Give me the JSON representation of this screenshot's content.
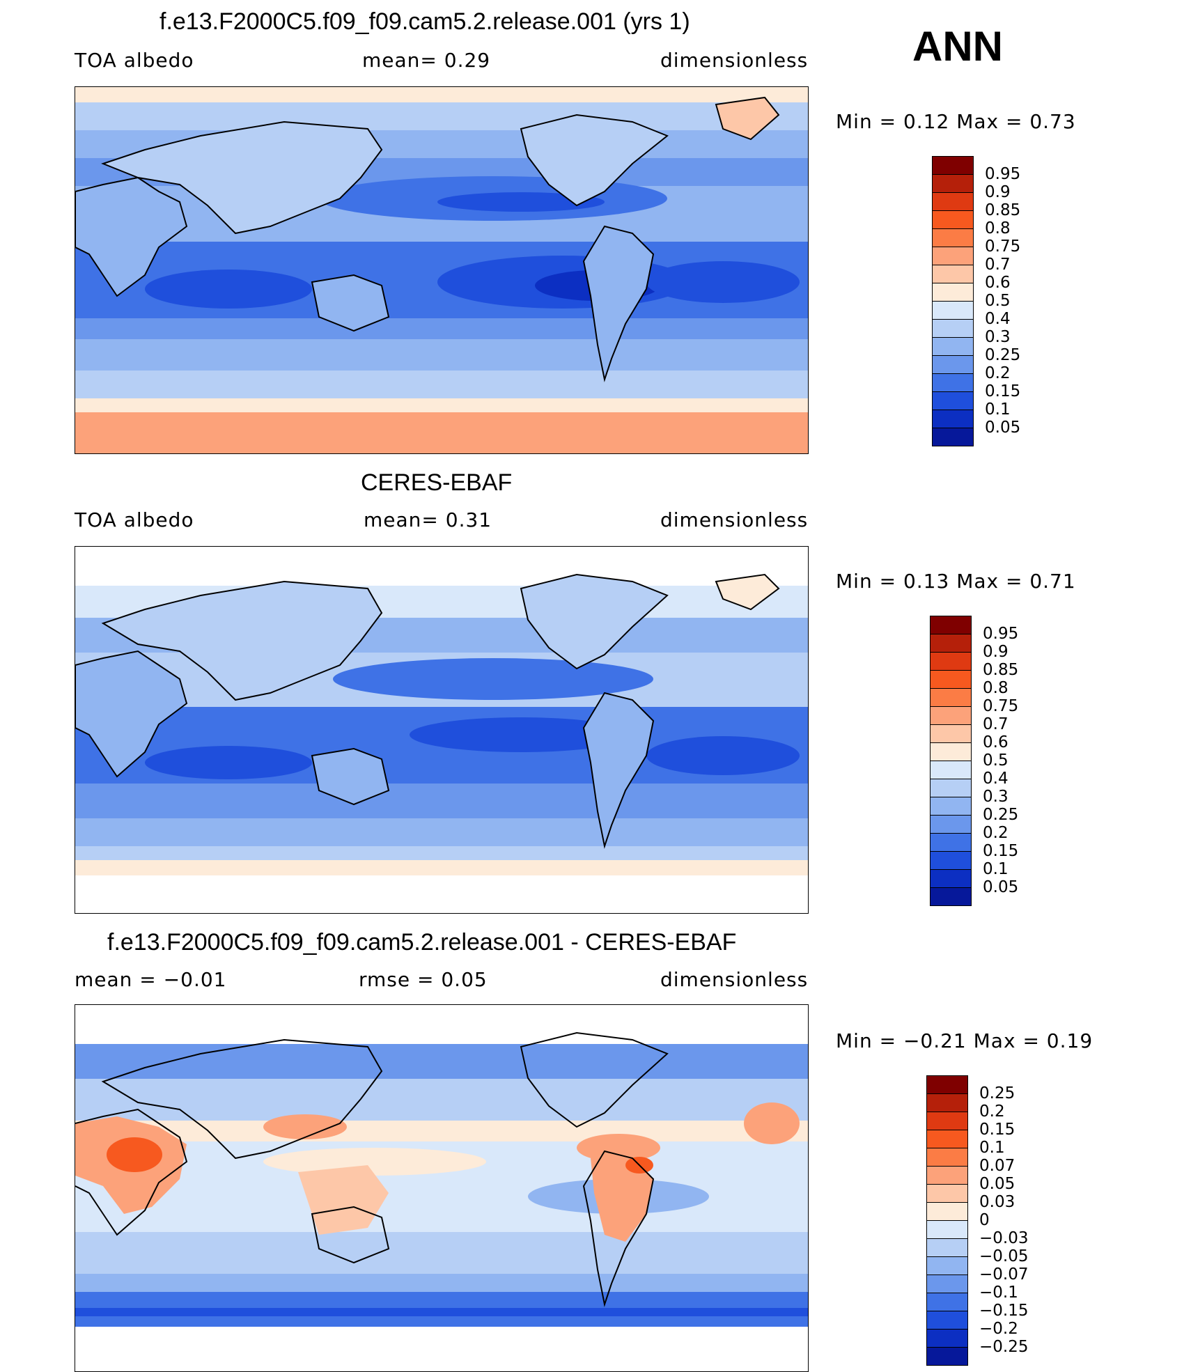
{
  "season": "ANN",
  "panels": [
    {
      "title": "f.e13.F2000C5.f09_f09.cam5.2.release.001 (yrs 1)",
      "left_label": "TOA  albedo",
      "center_label": "mean=     0.29",
      "right_label": "dimensionless",
      "minmax": "Min  =      0.12  Max  =      0.73",
      "levels": [
        "0.95",
        "0.9",
        "0.85",
        "0.8",
        "0.75",
        "0.7",
        "0.6",
        "0.5",
        "0.4",
        "0.3",
        "0.25",
        "0.2",
        "0.15",
        "0.1",
        "0.05"
      ]
    },
    {
      "title": "CERES-EBAF",
      "left_label": "TOA  albedo",
      "center_label": "mean=     0.31",
      "right_label": "dimensionless",
      "minmax": "Min  =      0.13  Max  =      0.71",
      "levels": [
        "0.95",
        "0.9",
        "0.85",
        "0.8",
        "0.75",
        "0.7",
        "0.6",
        "0.5",
        "0.4",
        "0.3",
        "0.25",
        "0.2",
        "0.15",
        "0.1",
        "0.05"
      ]
    },
    {
      "title": "f.e13.F2000C5.f09_f09.cam5.2.release.001 - CERES-EBAF",
      "left_label": "mean  =    −0.01",
      "center_label": "rmse  =     0.05",
      "right_label": "dimensionless",
      "minmax": "Min  =    −0.21  Max  =      0.19",
      "levels": [
        "0.25",
        "0.2",
        "0.15",
        "0.1",
        "0.07",
        "0.05",
        "0.03",
        "0",
        "−0.03",
        "−0.05",
        "−0.07",
        "−0.1",
        "−0.15",
        "−0.2",
        "−0.25"
      ]
    }
  ],
  "colors": {
    "scale": [
      "#7f0000",
      "#b5200a",
      "#df3a12",
      "#f7591f",
      "#fb7c45",
      "#fca27a",
      "#fdc7a8",
      "#fdebd9",
      "#d9e8fa",
      "#b6cff5",
      "#91b5f1",
      "#6b97ec",
      "#3f72e6",
      "#1f4fdc",
      "#0c2fc2",
      "#06189a"
    ],
    "scale_diff": [
      "#7f0000",
      "#b5200a",
      "#df3a12",
      "#f7591f",
      "#fb7c45",
      "#fca27a",
      "#fdc7a8",
      "#fdebd9",
      "#d9e8fa",
      "#b6cff5",
      "#91b5f1",
      "#6b97ec",
      "#3f72e6",
      "#1f4fdc",
      "#0c2fc2",
      "#06189a"
    ]
  }
}
